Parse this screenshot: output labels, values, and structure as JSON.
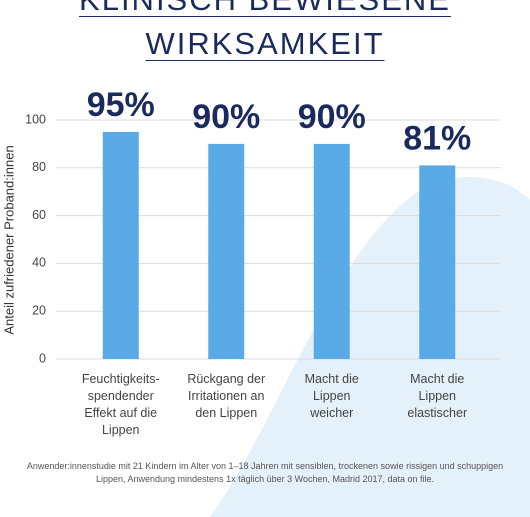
{
  "chart_data": {
    "type": "bar",
    "title": "KLINISCH BEWIESENE\nWIRKSAMKEIT",
    "y_label": "Anteil zufriedener Proband:innen",
    "categories": [
      "Feuchtigkeits-\nspendender\nEffekt auf die\nLippen",
      "Rückgang der\nIrritationen an\nden Lippen",
      "Macht die\nLippen\nweicher",
      "Macht die\nLippen\nelastischer"
    ],
    "values": [
      95,
      90,
      90,
      81
    ],
    "value_labels": [
      "95%",
      "90%",
      "90%",
      "81%"
    ],
    "color": "#5aaae8",
    "ylim": [
      0,
      100
    ],
    "yticks": [
      0,
      20,
      40,
      60,
      80,
      100
    ],
    "grid": true,
    "footnote": "Anwender:innenstudie mit 21 Kindern im Alter von 1–18 Jahren mit sensiblen, trockenen sowie rissigen und schuppigen Lippen, Anwendung mindestens 1x täglich über 3 Wochen, Madrid 2017, data on file."
  }
}
